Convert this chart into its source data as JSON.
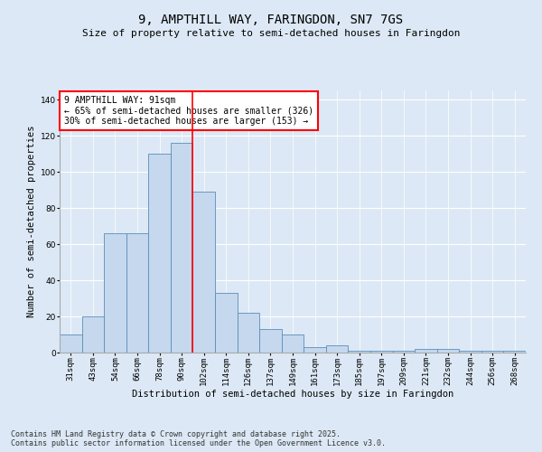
{
  "title": "9, AMPTHILL WAY, FARINGDON, SN7 7GS",
  "subtitle": "Size of property relative to semi-detached houses in Faringdon",
  "xlabel": "Distribution of semi-detached houses by size in Faringdon",
  "ylabel": "Number of semi-detached properties",
  "categories": [
    "31sqm",
    "43sqm",
    "54sqm",
    "66sqm",
    "78sqm",
    "90sqm",
    "102sqm",
    "114sqm",
    "126sqm",
    "137sqm",
    "149sqm",
    "161sqm",
    "173sqm",
    "185sqm",
    "197sqm",
    "209sqm",
    "221sqm",
    "232sqm",
    "244sqm",
    "256sqm",
    "268sqm"
  ],
  "values": [
    10,
    20,
    66,
    66,
    110,
    116,
    89,
    33,
    22,
    13,
    10,
    3,
    4,
    1,
    1,
    1,
    2,
    2,
    1,
    1,
    1
  ],
  "bar_color": "#c5d8ed",
  "bar_edge_color": "#5b8db8",
  "vline_x_index": 5,
  "vline_color": "red",
  "ylim": [
    0,
    145
  ],
  "yticks": [
    0,
    20,
    40,
    60,
    80,
    100,
    120,
    140
  ],
  "annotation_text": "9 AMPTHILL WAY: 91sqm\n← 65% of semi-detached houses are smaller (326)\n30% of semi-detached houses are larger (153) →",
  "annotation_box_color": "#ffffff",
  "annotation_box_edge": "red",
  "footnote": "Contains HM Land Registry data © Crown copyright and database right 2025.\nContains public sector information licensed under the Open Government Licence v3.0.",
  "background_color": "#dce8f5",
  "plot_background_color": "#dce8f5",
  "title_fontsize": 10,
  "subtitle_fontsize": 8,
  "axis_label_fontsize": 7.5,
  "tick_fontsize": 6.5,
  "annotation_fontsize": 7,
  "footnote_fontsize": 6
}
